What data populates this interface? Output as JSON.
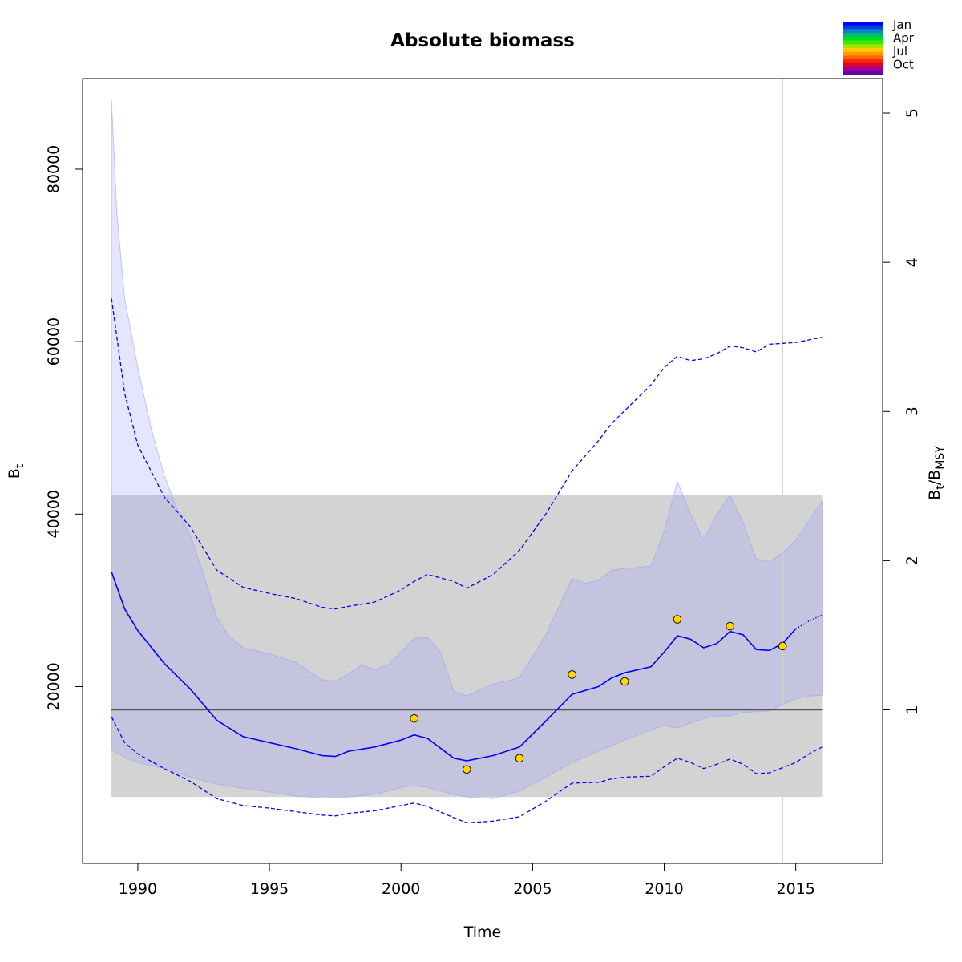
{
  "chart_data": {
    "type": "line",
    "title": "Absolute biomass",
    "xlabel": "Time",
    "ylabel": "B",
    "ylabel_sub": "t",
    "y2label": {
      "b": "B",
      "t": "t",
      "slash": "/",
      "b2": "B",
      "msy": "MSY"
    },
    "xlim": [
      1987.9,
      2018.3
    ],
    "ylim": [
      -500,
      90500
    ],
    "y2_ratio_per_unit": 17300,
    "x_ticks": [
      1990,
      1995,
      2000,
      2005,
      2010,
      2015
    ],
    "x_tick_labels": [
      "1990",
      "1995",
      "2000",
      "2005",
      "2010",
      "2015"
    ],
    "y_ticks": [
      20000,
      40000,
      60000,
      80000
    ],
    "y_tick_labels": [
      "20000",
      "40000",
      "60000",
      "80000"
    ],
    "y2_ticks": [
      1,
      2,
      3,
      4,
      5
    ],
    "y2_tick_labels": [
      "1",
      "2",
      "3",
      "4",
      "5"
    ],
    "bmsy_band": {
      "x": [
        1989.0,
        2016.0
      ],
      "lower": 7200,
      "upper": 42200,
      "color": "#d3d3d3"
    },
    "bmsy_line": {
      "value": 17300,
      "color": "#555555"
    },
    "vertical_line": {
      "x": 2014.5,
      "color": "#d3d3d3"
    },
    "series": [
      {
        "role": "median",
        "color": "#0000ff",
        "x": [
          1989.0,
          1989.5,
          1990.0,
          1991.0,
          1992.0,
          1993.0,
          1994.0,
          1995.0,
          1996.0,
          1997.0,
          1997.5,
          1998.0,
          1999.0,
          2000.0,
          2000.5,
          2001.0,
          2002.0,
          2002.5,
          2003.5,
          2004.5,
          2005.5,
          2006.5,
          2007.5,
          2008.0,
          2008.5,
          2009.5,
          2010.0,
          2010.5,
          2011.0,
          2011.5,
          2012.0,
          2012.5,
          2013.0,
          2013.5,
          2014.0,
          2014.5,
          2015.0
        ],
        "values": [
          33300,
          29000,
          26500,
          22700,
          19700,
          16100,
          14200,
          13500,
          12800,
          12000,
          11900,
          12500,
          13000,
          13800,
          14400,
          14000,
          11700,
          11400,
          12000,
          13000,
          16000,
          19100,
          20000,
          21000,
          21600,
          22300,
          24000,
          25900,
          25500,
          24500,
          25000,
          26400,
          26000,
          24300,
          24200,
          25000,
          26700
        ]
      },
      {
        "role": "prediction",
        "color": "#0000ff",
        "x": [
          2015.0,
          2015.5,
          2016.0
        ],
        "values": [
          26700,
          27600,
          28300
        ]
      },
      {
        "role": "ci95_upper",
        "color": "#0000ff",
        "x": [
          1989.0,
          1989.5,
          1990.0,
          1991.0,
          1992.0,
          1993.0,
          1994.0,
          1995.0,
          1996.0,
          1997.0,
          1997.5,
          1998.0,
          1999.0,
          2000.0,
          2000.5,
          2001.0,
          2002.0,
          2002.5,
          2003.5,
          2004.5,
          2005.5,
          2006.5,
          2007.5,
          2008.0,
          2008.5,
          2009.5,
          2010.0,
          2010.5,
          2011.0,
          2011.5,
          2012.0,
          2012.5,
          2013.0,
          2013.5,
          2014.0,
          2014.5,
          2015.0,
          2015.5,
          2016.0
        ],
        "values": [
          65000,
          54000,
          48000,
          42000,
          38500,
          33500,
          31500,
          30800,
          30200,
          29200,
          29000,
          29300,
          29800,
          31200,
          32200,
          33000,
          32200,
          31400,
          33000,
          35800,
          40000,
          45000,
          48500,
          50500,
          52000,
          55000,
          57000,
          58300,
          57800,
          58000,
          58600,
          59500,
          59300,
          58800,
          59700,
          59800,
          59900,
          60200,
          60500
        ]
      },
      {
        "role": "ci95_lower",
        "color": "#0000ff",
        "x": [
          1989.0,
          1989.5,
          1990.0,
          1991.0,
          1992.0,
          1993.0,
          1994.0,
          1995.0,
          1996.0,
          1997.0,
          1997.5,
          1998.0,
          1999.0,
          2000.0,
          2000.5,
          2001.0,
          2002.0,
          2002.5,
          2003.5,
          2004.5,
          2005.5,
          2006.5,
          2007.5,
          2008.0,
          2008.5,
          2009.5,
          2010.0,
          2010.5,
          2011.0,
          2011.5,
          2012.0,
          2012.5,
          2013.0,
          2013.5,
          2014.0,
          2014.5,
          2015.0,
          2015.5,
          2016.0
        ],
        "values": [
          16500,
          13500,
          12200,
          10500,
          9000,
          7000,
          6200,
          5900,
          5500,
          5100,
          5000,
          5300,
          5600,
          6200,
          6500,
          6100,
          4800,
          4200,
          4400,
          4900,
          6700,
          8800,
          8900,
          9300,
          9500,
          9600,
          10700,
          11700,
          11200,
          10500,
          11000,
          11600,
          11000,
          9900,
          10000,
          10600,
          11200,
          12200,
          13000
        ]
      }
    ],
    "bands": [
      {
        "role": "ci95_band_upper",
        "color": "#9999ff",
        "x": [
          1989.0,
          1989.2,
          1989.5,
          1990.0,
          1990.5,
          1991.0,
          1991.5,
          1992.0,
          1992.5,
          1993.0,
          1993.5,
          1994.0,
          1995.0,
          1996.0,
          1997.0,
          1997.5,
          1998.0,
          1998.5,
          1999.0,
          1999.5,
          2000.0,
          2000.5,
          2001.0,
          2001.5,
          2002.0,
          2002.5,
          2003.5,
          2004.5,
          2005.5,
          2006.5,
          2007.0,
          2007.5,
          2008.0,
          2008.5,
          2009.0,
          2009.5,
          2010.0,
          2010.5,
          2011.0,
          2011.5,
          2012.0,
          2012.5,
          2013.0,
          2013.5,
          2014.0,
          2014.5,
          2015.0,
          2015.5,
          2016.0
        ],
        "values": [
          88000,
          75000,
          65000,
          57000,
          50000,
          44500,
          40500,
          37500,
          33000,
          28000,
          25800,
          24500,
          23800,
          22800,
          20800,
          20600,
          21500,
          22500,
          22000,
          22500,
          24000,
          25600,
          25700,
          24000,
          19500,
          18900,
          20300,
          21000,
          26000,
          32500,
          32000,
          32300,
          33500,
          33700,
          33800,
          34000,
          38000,
          43800,
          40000,
          37000,
          40000,
          42200,
          39000,
          34800,
          34500,
          35500,
          37000,
          39200,
          41500
        ]
      },
      {
        "role": "ci95_band_lower",
        "color": "#9999ff",
        "x": [
          1989.0,
          1989.5,
          1990.0,
          1991.0,
          1992.0,
          1993.0,
          1994.0,
          1995.0,
          1996.0,
          1997.0,
          1998.0,
          1999.0,
          2000.0,
          2000.5,
          2001.0,
          2002.0,
          2002.5,
          2003.5,
          2004.5,
          2005.5,
          2006.5,
          2007.5,
          2008.5,
          2009.5,
          2010.0,
          2010.5,
          2011.0,
          2011.5,
          2012.0,
          2012.5,
          2013.0,
          2013.5,
          2014.0,
          2014.5,
          2015.0,
          2015.5,
          2016.0
        ],
        "values": [
          12700,
          11800,
          11200,
          10500,
          9500,
          8700,
          8200,
          7800,
          7300,
          7100,
          7200,
          7500,
          8300,
          8500,
          8300,
          7500,
          7200,
          7000,
          7900,
          9500,
          11200,
          12500,
          13800,
          15000,
          15500,
          15200,
          15800,
          16300,
          16600,
          16600,
          17000,
          17100,
          17200,
          17900,
          18600,
          18900,
          19000
        ]
      }
    ],
    "observations": {
      "fill": "#ffd700",
      "x": [
        2000.5,
        2002.5,
        2004.5,
        2006.5,
        2008.5,
        2010.5,
        2012.5,
        2014.5
      ],
      "values": [
        16300,
        10400,
        11700,
        21400,
        20600,
        27800,
        27000,
        24700
      ]
    },
    "season_legend": {
      "labels": [
        "Jan",
        "Apr",
        "Jul",
        "Oct"
      ],
      "colors": [
        "#0000ff",
        "#0044e0",
        "#0088c0",
        "#00bb70",
        "#00dd22",
        "#33ee00",
        "#aadd00",
        "#ffcc00",
        "#ff9900",
        "#ff6600",
        "#ff2200",
        "#dd0033",
        "#990099",
        "#6600aa"
      ]
    }
  }
}
